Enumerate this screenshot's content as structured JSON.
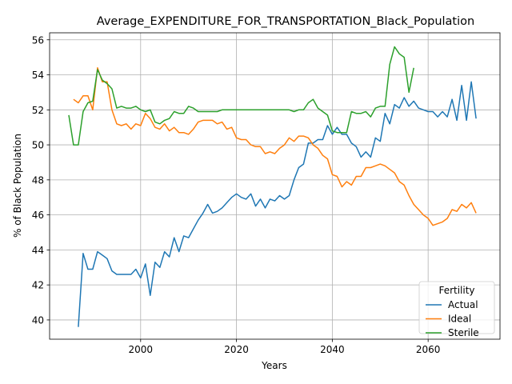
{
  "chart_data": {
    "type": "line",
    "title": "Average_EXPENDITURE_FOR_TRANSPORTATION_Black_Population",
    "xlabel": "Years",
    "ylabel": "% of Black Population",
    "xlim": [
      1981,
      2075
    ],
    "ylim": [
      38.9,
      56.4
    ],
    "xticks": [
      2000,
      2020,
      2040,
      2060
    ],
    "yticks": [
      40,
      42,
      44,
      46,
      48,
      50,
      52,
      54,
      56
    ],
    "grid": true,
    "legend": {
      "title": "Fertility",
      "position": "lower right"
    },
    "series": [
      {
        "name": "Actual",
        "color": "#1f77b4",
        "x": [
          1987,
          1988,
          1989,
          1990,
          1991,
          1992,
          1993,
          1994,
          1995,
          1996,
          1997,
          1998,
          1999,
          2000,
          2001,
          2002,
          2003,
          2004,
          2005,
          2006,
          2007,
          2008,
          2009,
          2010,
          2011,
          2012,
          2013,
          2014,
          2015,
          2016,
          2017,
          2018,
          2019,
          2020,
          2021,
          2022,
          2023,
          2024,
          2025,
          2026,
          2027,
          2028,
          2029,
          2030,
          2031,
          2032,
          2033,
          2034,
          2035,
          2036,
          2037,
          2038,
          2039,
          2040,
          2041,
          2042,
          2043,
          2044,
          2045,
          2046,
          2047,
          2048,
          2049,
          2050,
          2051,
          2052,
          2053,
          2054,
          2055,
          2056,
          2057,
          2058,
          2059,
          2060,
          2061,
          2062,
          2063,
          2064,
          2065,
          2066,
          2067,
          2068,
          2069,
          2070
        ],
        "y": [
          39.6,
          43.8,
          42.9,
          42.9,
          43.9,
          43.7,
          43.5,
          42.8,
          42.6,
          42.6,
          42.6,
          42.6,
          42.9,
          42.4,
          43.2,
          41.4,
          43.3,
          43.0,
          43.9,
          43.6,
          44.7,
          43.9,
          44.8,
          44.7,
          45.2,
          45.7,
          46.1,
          46.6,
          46.1,
          46.2,
          46.4,
          46.7,
          47.0,
          47.2,
          47.0,
          46.9,
          47.2,
          46.5,
          46.9,
          46.4,
          46.9,
          46.8,
          47.1,
          46.9,
          47.1,
          48.0,
          48.7,
          48.9,
          50.1,
          50.1,
          50.3,
          50.3,
          51.1,
          50.6,
          51.0,
          50.6,
          50.6,
          50.1,
          49.9,
          49.3,
          49.6,
          49.3,
          50.4,
          50.2,
          51.8,
          51.2,
          52.3,
          52.1,
          52.7,
          52.2,
          52.5,
          52.1,
          52.0,
          51.9,
          51.9,
          51.6,
          51.9,
          51.6,
          52.6,
          51.4,
          53.4,
          51.4,
          53.6,
          51.5
        ]
      },
      {
        "name": "Ideal",
        "color": "#ff7f0e",
        "x": [
          1986,
          1987,
          1988,
          1989,
          1990,
          1991,
          1992,
          1993,
          1994,
          1995,
          1996,
          1997,
          1998,
          1999,
          2000,
          2001,
          2002,
          2003,
          2004,
          2005,
          2006,
          2007,
          2008,
          2009,
          2010,
          2011,
          2012,
          2013,
          2014,
          2015,
          2016,
          2017,
          2018,
          2019,
          2020,
          2021,
          2022,
          2023,
          2024,
          2025,
          2026,
          2027,
          2028,
          2029,
          2030,
          2031,
          2032,
          2033,
          2034,
          2035,
          2036,
          2037,
          2038,
          2039,
          2040,
          2041,
          2042,
          2043,
          2044,
          2045,
          2046,
          2047,
          2048,
          2049,
          2050,
          2051,
          2052,
          2053,
          2054,
          2055,
          2056,
          2057,
          2058,
          2059,
          2060,
          2061,
          2062,
          2063,
          2064,
          2065,
          2066,
          2067,
          2068,
          2069,
          2070
        ],
        "y": [
          52.6,
          52.4,
          52.8,
          52.8,
          52.0,
          54.4,
          53.6,
          53.6,
          52.0,
          51.2,
          51.1,
          51.2,
          50.9,
          51.2,
          51.1,
          51.8,
          51.5,
          51.0,
          50.9,
          51.2,
          50.8,
          51.0,
          50.7,
          50.7,
          50.6,
          50.9,
          51.3,
          51.4,
          51.4,
          51.4,
          51.2,
          51.3,
          50.9,
          51.0,
          50.4,
          50.3,
          50.3,
          50.0,
          49.9,
          49.9,
          49.5,
          49.6,
          49.5,
          49.8,
          50.0,
          50.4,
          50.2,
          50.5,
          50.5,
          50.4,
          50.0,
          49.8,
          49.4,
          49.2,
          48.3,
          48.2,
          47.6,
          47.9,
          47.7,
          48.2,
          48.2,
          48.7,
          48.7,
          48.8,
          48.9,
          48.8,
          48.6,
          48.4,
          47.9,
          47.7,
          47.1,
          46.6,
          46.3,
          46.0,
          45.8,
          45.4,
          45.5,
          45.6,
          45.8,
          46.3,
          46.2,
          46.6,
          46.4,
          46.7,
          46.1
        ]
      },
      {
        "name": "Sterile",
        "color": "#2ca02c",
        "x": [
          1985,
          1986,
          1987,
          1988,
          1989,
          1990,
          1991,
          1992,
          1993,
          1994,
          1995,
          1996,
          1997,
          1998,
          1999,
          2000,
          2001,
          2002,
          2003,
          2004,
          2005,
          2006,
          2007,
          2008,
          2009,
          2010,
          2011,
          2012,
          2013,
          2014,
          2015,
          2016,
          2017,
          2018,
          2019,
          2020,
          2021,
          2022,
          2023,
          2024,
          2025,
          2026,
          2027,
          2028,
          2029,
          2030,
          2031,
          2032,
          2033,
          2034,
          2035,
          2036,
          2037,
          2038,
          2039,
          2040,
          2041,
          2042,
          2043,
          2044,
          2045,
          2046,
          2047,
          2048,
          2049,
          2050,
          2051,
          2052,
          2053,
          2054,
          2055,
          2056,
          2057
        ],
        "y": [
          51.7,
          50.0,
          50.0,
          51.9,
          52.4,
          52.5,
          54.3,
          53.7,
          53.5,
          53.2,
          52.1,
          52.2,
          52.1,
          52.1,
          52.2,
          52.0,
          51.9,
          52.0,
          51.3,
          51.2,
          51.4,
          51.5,
          51.9,
          51.8,
          51.8,
          52.2,
          52.1,
          51.9,
          51.9,
          51.9,
          51.9,
          51.9,
          52.0,
          52.0,
          52.0,
          52.0,
          52.0,
          52.0,
          52.0,
          52.0,
          52.0,
          52.0,
          52.0,
          52.0,
          52.0,
          52.0,
          52.0,
          51.9,
          52.0,
          52.0,
          52.4,
          52.6,
          52.1,
          51.9,
          51.7,
          50.8,
          50.7,
          50.7,
          50.7,
          51.9,
          51.8,
          51.8,
          51.9,
          51.6,
          52.1,
          52.2,
          52.2,
          54.6,
          55.6,
          55.2,
          55.0,
          53.0,
          54.4
        ]
      }
    ]
  }
}
